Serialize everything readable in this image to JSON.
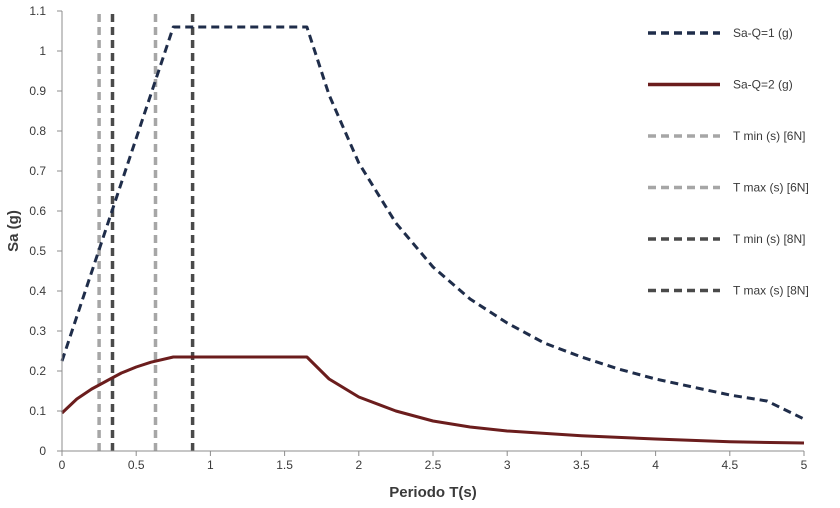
{
  "chart_data": {
    "type": "line",
    "title": "",
    "xlabel": "Periodo T(s)",
    "ylabel": "Sa (g)",
    "xlim": [
      0,
      5
    ],
    "ylim": [
      0,
      1.1
    ],
    "x_ticks": [
      0,
      0.5,
      1,
      1.5,
      2,
      2.5,
      3,
      3.5,
      4,
      4.5,
      5
    ],
    "x_tick_labels": [
      "0",
      "0.5",
      "1",
      "1.5",
      "2",
      "2.5",
      "3",
      "3.5",
      "4",
      "4.5",
      "5"
    ],
    "y_ticks": [
      0,
      0.1,
      0.2,
      0.3,
      0.4,
      0.5,
      0.6,
      0.7,
      0.8,
      0.9,
      1,
      1.1
    ],
    "y_tick_labels": [
      "0",
      "0.1",
      "0.2",
      "0.3",
      "0.4",
      "0.5",
      "0.6",
      "0.7",
      "0.8",
      "0.9",
      "1",
      "1.1"
    ],
    "grid": false,
    "legend_position": "right",
    "series": [
      {
        "name": "Sa-Q=1 (g)",
        "kind": "curve",
        "color": "#1f2d4a",
        "dash": "dashed",
        "x": [
          0,
          0.75,
          1.65,
          1.8,
          2.0,
          2.25,
          2.5,
          2.75,
          3.0,
          3.25,
          3.5,
          3.75,
          4.0,
          4.25,
          4.5,
          4.75,
          5.0
        ],
        "values": [
          0.225,
          1.06,
          1.06,
          0.89,
          0.72,
          0.57,
          0.46,
          0.38,
          0.32,
          0.27,
          0.235,
          0.205,
          0.18,
          0.16,
          0.14,
          0.125,
          0.08
        ]
      },
      {
        "name": "Sa-Q=2 (g)",
        "kind": "curve",
        "color": "#6b1d1d",
        "dash": "solid",
        "x": [
          0,
          0.1,
          0.2,
          0.3,
          0.4,
          0.5,
          0.6,
          0.75,
          1.0,
          1.25,
          1.5,
          1.65,
          1.8,
          2.0,
          2.25,
          2.5,
          2.75,
          3.0,
          3.5,
          4.0,
          4.5,
          5.0
        ],
        "values": [
          0.095,
          0.13,
          0.155,
          0.175,
          0.195,
          0.21,
          0.222,
          0.235,
          0.235,
          0.235,
          0.235,
          0.235,
          0.18,
          0.135,
          0.1,
          0.075,
          0.06,
          0.05,
          0.038,
          0.03,
          0.023,
          0.02
        ]
      },
      {
        "name": "T min (s) [6N]",
        "kind": "vline",
        "color": "#a6a6a6",
        "dash": "dashed",
        "x": [
          0.25,
          0.25
        ],
        "values": [
          0,
          1.1
        ]
      },
      {
        "name": "T max (s) [6N]",
        "kind": "vline",
        "color": "#a6a6a6",
        "dash": "dashed",
        "x": [
          0.63,
          0.63
        ],
        "values": [
          0,
          1.1
        ]
      },
      {
        "name": "T min (s) [8N]",
        "kind": "vline",
        "color": "#4a4a4a",
        "dash": "dashed",
        "x": [
          0.34,
          0.34
        ],
        "values": [
          0,
          1.1
        ]
      },
      {
        "name": "T max (s) [8N]",
        "kind": "vline",
        "color": "#4a4a4a",
        "dash": "dashed",
        "x": [
          0.88,
          0.88
        ],
        "values": [
          0,
          1.1
        ]
      }
    ]
  }
}
